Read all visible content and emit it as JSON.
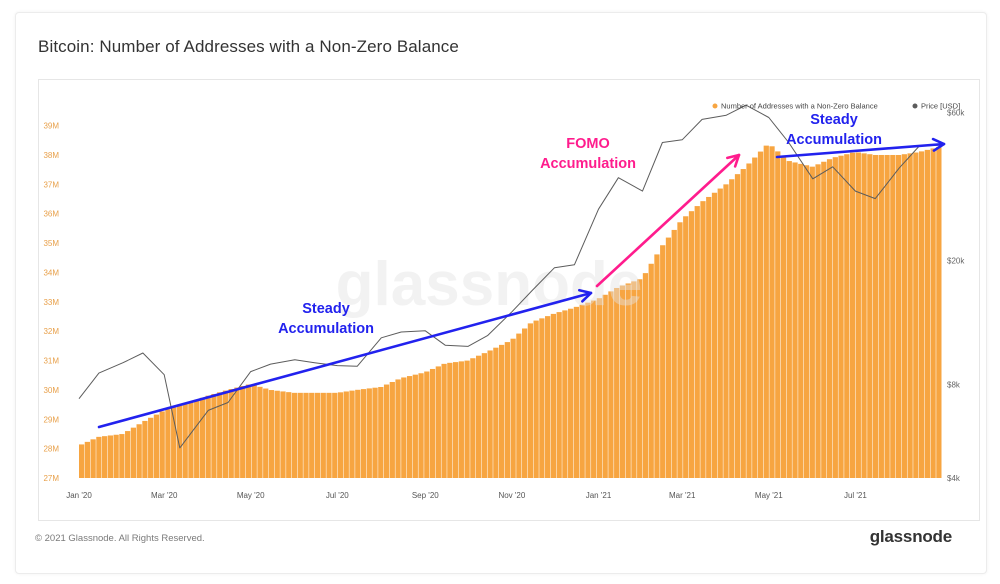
{
  "page": {
    "title": "Bitcoin: Number of Addresses with a Non-Zero Balance",
    "footer_copyright": "© 2021 Glassnode. All Rights Reserved.",
    "footer_logo": "glassnode",
    "watermark": "glassnode"
  },
  "colors": {
    "bars": "#f7a541",
    "bar_edge": "#ffffff",
    "price_line": "#5c5c5c",
    "left_axis": "#e8a04a",
    "right_axis": "#666666",
    "steady_arrow": "#2222ee",
    "fomo_arrow": "#ff1c8d"
  },
  "annotations": [
    {
      "id": "steady-1",
      "lines": [
        "Steady",
        "Accumulation"
      ],
      "color": "#2222ee"
    },
    {
      "id": "fomo",
      "lines": [
        "FOMO",
        "Accumulation"
      ],
      "color": "#ff1c8d"
    },
    {
      "id": "steady-2",
      "lines": [
        "Steady",
        "Accumulation"
      ],
      "color": "#2222ee"
    }
  ],
  "chart_data": {
    "type": "bar",
    "legend": {
      "placement": "top-right",
      "entries": [
        "Number of Addresses with a Non-Zero Balance",
        "Price [USD]"
      ]
    },
    "x_ticks": [
      "Jan '20",
      "Mar '20",
      "May '20",
      "Jul '20",
      "Sep '20",
      "Nov '20",
      "Jan '21",
      "Mar '21",
      "May '21",
      "Jul '21"
    ],
    "y_left": {
      "ticks": [
        "27M",
        "28M",
        "29M",
        "30M",
        "31M",
        "32M",
        "33M",
        "34M",
        "35M",
        "36M",
        "37M",
        "38M",
        "39M"
      ],
      "range": [
        27,
        39.6
      ],
      "unit": "M"
    },
    "y_right": {
      "ticks": [
        "$4k",
        "$8k",
        "$20k",
        "$60k"
      ],
      "scale": "log",
      "range": [
        4000,
        62000
      ]
    },
    "grid": false,
    "series": [
      {
        "name": "Number of Addresses with a Non-Zero Balance",
        "kind": "bar",
        "points": [
          [
            "2020-01-01",
            28.1
          ],
          [
            "2020-01-15",
            28.4
          ],
          [
            "2020-02-01",
            28.5
          ],
          [
            "2020-02-15",
            28.9
          ],
          [
            "2020-03-01",
            29.3
          ],
          [
            "2020-03-15",
            29.5
          ],
          [
            "2020-04-01",
            29.8
          ],
          [
            "2020-04-15",
            30.0
          ],
          [
            "2020-05-01",
            30.2
          ],
          [
            "2020-05-15",
            30.0
          ],
          [
            "2020-06-01",
            29.9
          ],
          [
            "2020-06-15",
            29.9
          ],
          [
            "2020-07-01",
            29.9
          ],
          [
            "2020-07-15",
            30.0
          ],
          [
            "2020-08-01",
            30.1
          ],
          [
            "2020-08-15",
            30.4
          ],
          [
            "2020-09-01",
            30.6
          ],
          [
            "2020-09-15",
            30.9
          ],
          [
            "2020-10-01",
            31.0
          ],
          [
            "2020-10-15",
            31.3
          ],
          [
            "2020-11-01",
            31.7
          ],
          [
            "2020-11-15",
            32.3
          ],
          [
            "2020-12-01",
            32.6
          ],
          [
            "2020-12-15",
            32.8
          ],
          [
            "2021-01-01",
            33.1
          ],
          [
            "2021-01-15",
            33.5
          ],
          [
            "2021-02-01",
            33.8
          ],
          [
            "2021-02-15",
            34.9
          ],
          [
            "2021-03-01",
            35.8
          ],
          [
            "2021-03-15",
            36.4
          ],
          [
            "2021-04-01",
            37.0
          ],
          [
            "2021-04-15",
            37.6
          ],
          [
            "2021-05-01",
            38.4
          ],
          [
            "2021-05-15",
            37.8
          ],
          [
            "2021-06-01",
            37.6
          ],
          [
            "2021-06-15",
            37.9
          ],
          [
            "2021-07-01",
            38.1
          ],
          [
            "2021-07-15",
            38.0
          ],
          [
            "2021-08-01",
            38.0
          ],
          [
            "2021-08-15",
            38.1
          ],
          [
            "2021-08-31",
            38.3
          ]
        ]
      },
      {
        "name": "Price [USD]",
        "kind": "line",
        "points": [
          [
            "2020-01-01",
            7200
          ],
          [
            "2020-01-15",
            8700
          ],
          [
            "2020-02-01",
            9400
          ],
          [
            "2020-02-15",
            10100
          ],
          [
            "2020-03-01",
            8600
          ],
          [
            "2020-03-12",
            5000
          ],
          [
            "2020-04-01",
            6600
          ],
          [
            "2020-04-15",
            7000
          ],
          [
            "2020-05-01",
            8800
          ],
          [
            "2020-05-15",
            9300
          ],
          [
            "2020-06-01",
            9600
          ],
          [
            "2020-06-15",
            9400
          ],
          [
            "2020-07-01",
            9200
          ],
          [
            "2020-07-15",
            9150
          ],
          [
            "2020-08-01",
            11300
          ],
          [
            "2020-08-15",
            11800
          ],
          [
            "2020-09-01",
            11900
          ],
          [
            "2020-09-15",
            10700
          ],
          [
            "2020-10-01",
            10600
          ],
          [
            "2020-10-15",
            11500
          ],
          [
            "2020-11-01",
            13700
          ],
          [
            "2020-11-15",
            16000
          ],
          [
            "2020-12-01",
            19000
          ],
          [
            "2020-12-15",
            19400
          ],
          [
            "2021-01-01",
            29300
          ],
          [
            "2021-01-15",
            37000
          ],
          [
            "2021-02-01",
            33500
          ],
          [
            "2021-02-15",
            48000
          ],
          [
            "2021-03-01",
            49000
          ],
          [
            "2021-03-15",
            57000
          ],
          [
            "2021-04-01",
            58800
          ],
          [
            "2021-04-15",
            63300
          ],
          [
            "2021-05-01",
            57800
          ],
          [
            "2021-05-15",
            48000
          ],
          [
            "2021-06-01",
            36700
          ],
          [
            "2021-06-15",
            40100
          ],
          [
            "2021-07-01",
            33500
          ],
          [
            "2021-07-15",
            31700
          ],
          [
            "2021-08-01",
            39800
          ],
          [
            "2021-08-15",
            46800
          ],
          [
            "2021-08-31",
            47100
          ]
        ]
      }
    ]
  }
}
